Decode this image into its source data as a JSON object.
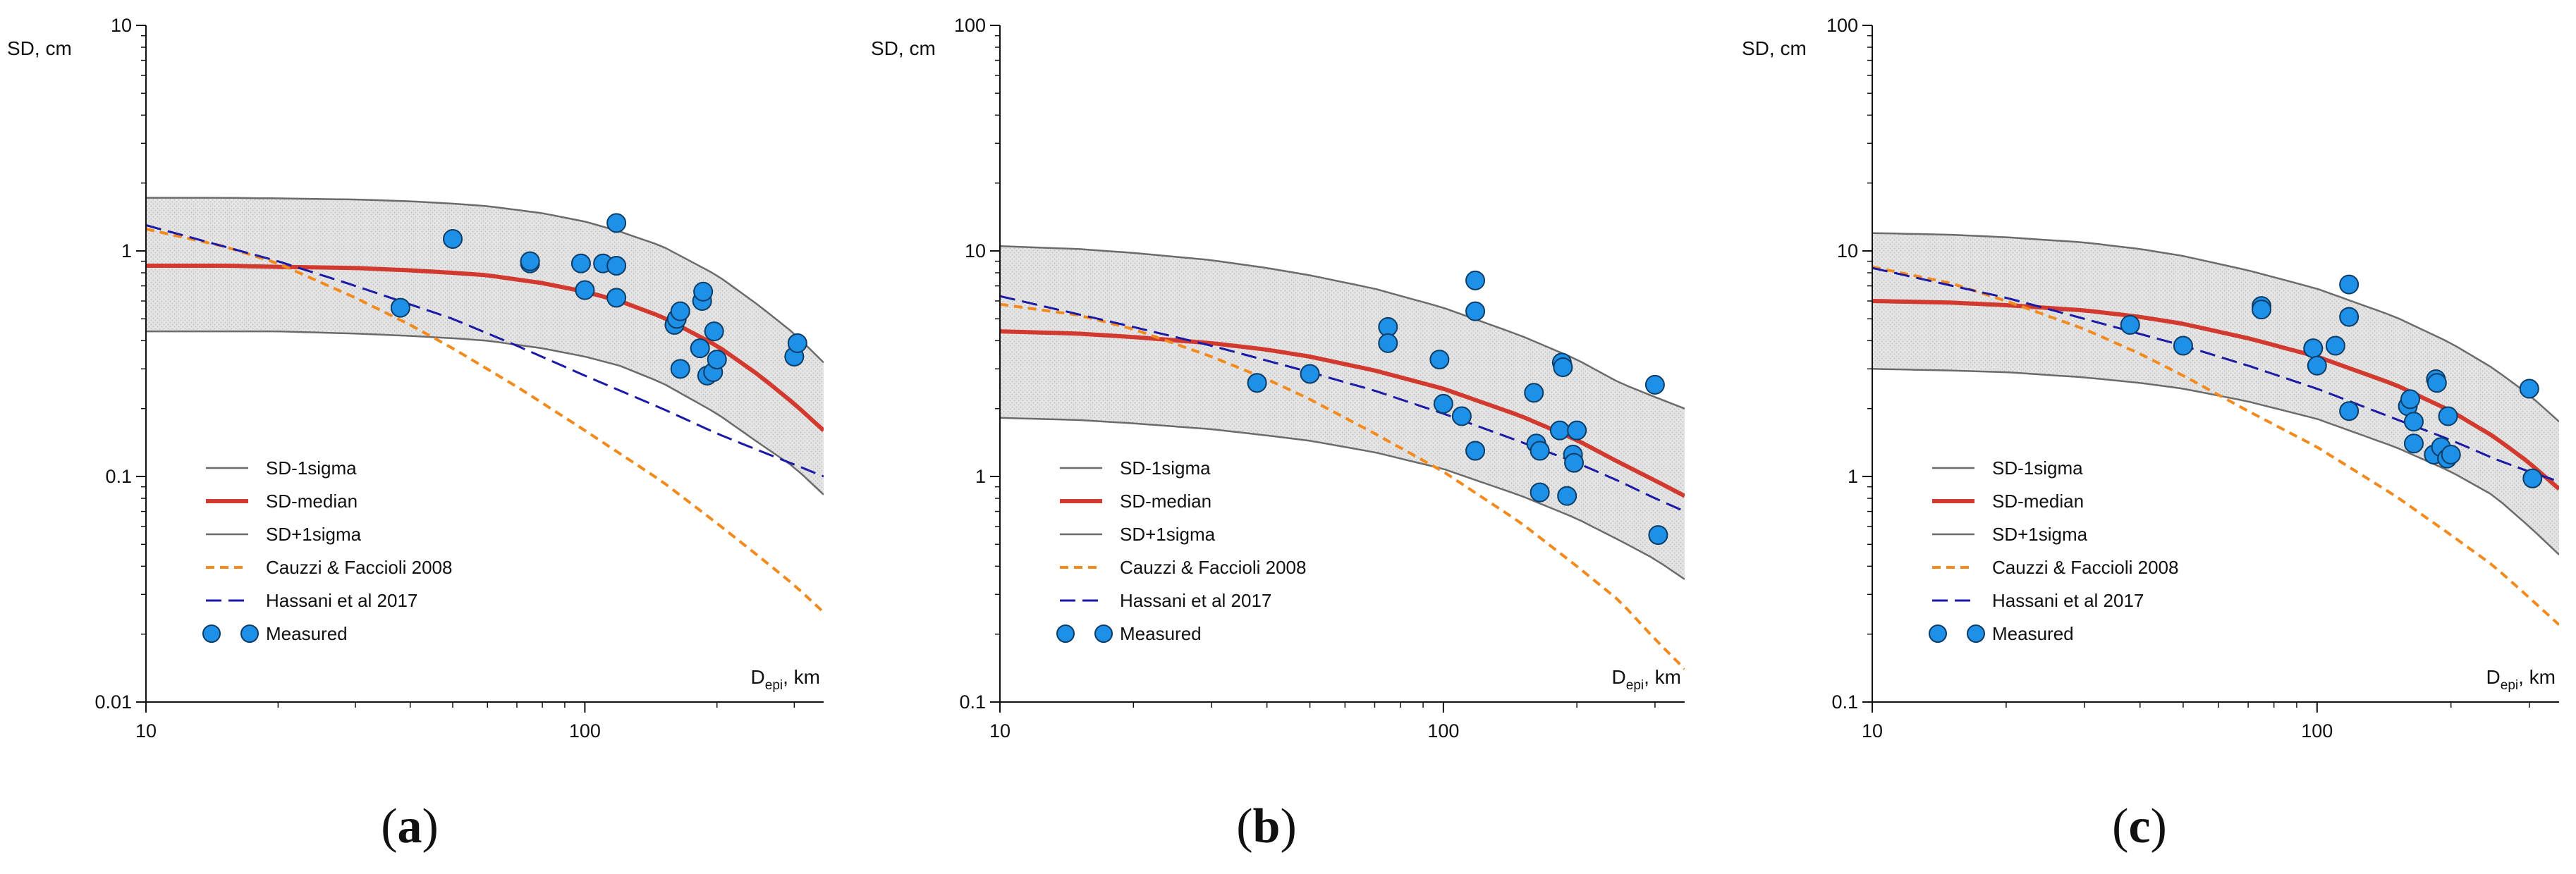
{
  "chart_data": [
    {
      "type": "line",
      "panel_label": {
        "open": "(",
        "letter": "a",
        "close": ")"
      },
      "ylabel": "SD, cm",
      "xlabel": {
        "main": "D",
        "sub": "epi",
        "unit": ", km"
      },
      "xscale": "log",
      "yscale": "log",
      "xlim": [
        10,
        350
      ],
      "ylim": [
        0.01,
        10
      ],
      "xticks": [
        10,
        100
      ],
      "xtick_labels": [
        "10",
        "100"
      ],
      "yticks": [
        0.01,
        0.1,
        1,
        10
      ],
      "ytick_labels": [
        "0.01",
        "0.1",
        "1",
        "10"
      ],
      "legend_position": "bottom-left",
      "legend": [
        "SD-1sigma",
        "SD-median",
        "SD+1sigma",
        "Cauzzi & Faccioli 2008",
        "Hassani et al 2017",
        "Measured"
      ],
      "series": [
        {
          "name": "SD-1sigma",
          "color": "#6b6b6b",
          "style": "solid",
          "x": [
            10,
            15,
            20,
            30,
            40,
            50,
            60,
            80,
            100,
            120,
            150,
            200,
            250,
            300,
            350
          ],
          "y": [
            0.44,
            0.44,
            0.44,
            0.43,
            0.42,
            0.41,
            0.4,
            0.37,
            0.34,
            0.31,
            0.26,
            0.19,
            0.14,
            0.11,
            0.083
          ]
        },
        {
          "name": "SD-median",
          "color": "#d23a2f",
          "style": "solid-thick",
          "x": [
            10,
            15,
            20,
            30,
            40,
            50,
            60,
            80,
            100,
            120,
            150,
            200,
            250,
            300,
            350
          ],
          "y": [
            0.86,
            0.86,
            0.85,
            0.84,
            0.82,
            0.8,
            0.78,
            0.72,
            0.66,
            0.6,
            0.51,
            0.38,
            0.28,
            0.21,
            0.16
          ]
        },
        {
          "name": "SD+1sigma",
          "color": "#6b6b6b",
          "style": "solid",
          "x": [
            10,
            15,
            20,
            30,
            40,
            50,
            60,
            80,
            100,
            120,
            150,
            200,
            250,
            300,
            350
          ],
          "y": [
            1.72,
            1.72,
            1.71,
            1.69,
            1.66,
            1.62,
            1.58,
            1.47,
            1.35,
            1.22,
            1.05,
            0.78,
            0.57,
            0.43,
            0.32
          ]
        },
        {
          "name": "Cauzzi & Faccioli 2008",
          "color": "#f28a1e",
          "style": "dashed",
          "x": [
            10,
            15,
            20,
            30,
            40,
            50,
            70,
            100,
            150,
            200,
            250,
            300,
            350
          ],
          "y": [
            1.25,
            1.05,
            0.88,
            0.62,
            0.47,
            0.37,
            0.25,
            0.16,
            0.095,
            0.062,
            0.044,
            0.033,
            0.025
          ]
        },
        {
          "name": "Hassani et al 2017",
          "color": "#1a1aa6",
          "style": "longdash",
          "x": [
            10,
            20,
            30,
            50,
            70,
            100,
            150,
            200,
            250,
            300,
            350
          ],
          "y": [
            1.3,
            0.9,
            0.7,
            0.5,
            0.38,
            0.28,
            0.2,
            0.155,
            0.13,
            0.113,
            0.1
          ]
        }
      ],
      "measured": {
        "name": "Measured",
        "color": "#1e90e8",
        "x": [
          38,
          50,
          75,
          75,
          98,
          100,
          110,
          118,
          118,
          118,
          160,
          162,
          165,
          165,
          183,
          185,
          186,
          190,
          196,
          197,
          200,
          300,
          305
        ],
        "y": [
          0.56,
          1.13,
          0.88,
          0.9,
          0.88,
          0.67,
          0.88,
          1.33,
          0.86,
          0.62,
          0.47,
          0.5,
          0.54,
          0.3,
          0.37,
          0.6,
          0.66,
          0.28,
          0.29,
          0.44,
          0.33,
          0.34,
          0.39
        ]
      }
    },
    {
      "type": "line",
      "panel_label": {
        "open": "(",
        "letter": "b",
        "close": ")"
      },
      "ylabel": "SD, cm",
      "xlabel": {
        "main": "D",
        "sub": "epi",
        "unit": ", km"
      },
      "xscale": "log",
      "yscale": "log",
      "xlim": [
        10,
        350
      ],
      "ylim": [
        0.1,
        100
      ],
      "xticks": [
        10,
        100
      ],
      "xtick_labels": [
        "10",
        "100"
      ],
      "yticks": [
        0.1,
        1,
        10,
        100
      ],
      "ytick_labels": [
        "0.1",
        "1",
        "10",
        "100"
      ],
      "legend_position": "bottom-left",
      "legend": [
        "SD-1sigma",
        "SD-median",
        "SD+1sigma",
        "Cauzzi & Faccioli 2008",
        "Hassani et al 2017",
        "Measured"
      ],
      "series": [
        {
          "name": "SD-1sigma",
          "color": "#6b6b6b",
          "style": "solid",
          "x": [
            10,
            15,
            20,
            30,
            40,
            50,
            70,
            100,
            150,
            200,
            250,
            300,
            350
          ],
          "y": [
            1.82,
            1.78,
            1.72,
            1.62,
            1.52,
            1.44,
            1.28,
            1.08,
            0.82,
            0.65,
            0.52,
            0.43,
            0.35
          ]
        },
        {
          "name": "SD-median",
          "color": "#d23a2f",
          "style": "solid-thick",
          "x": [
            10,
            15,
            20,
            30,
            40,
            50,
            70,
            100,
            150,
            200,
            250,
            300,
            350
          ],
          "y": [
            4.4,
            4.3,
            4.15,
            3.9,
            3.65,
            3.4,
            2.95,
            2.45,
            1.85,
            1.45,
            1.15,
            0.96,
            0.82
          ]
        },
        {
          "name": "SD+1sigma",
          "color": "#6b6b6b",
          "style": "solid",
          "x": [
            10,
            15,
            20,
            30,
            40,
            50,
            70,
            100,
            150,
            200,
            250,
            300,
            350
          ],
          "y": [
            10.5,
            10.2,
            9.8,
            9.1,
            8.4,
            7.8,
            6.8,
            5.6,
            4.2,
            3.3,
            2.6,
            2.25,
            2.0
          ]
        },
        {
          "name": "Cauzzi & Faccioli 2008",
          "color": "#f28a1e",
          "style": "dashed",
          "x": [
            10,
            15,
            20,
            30,
            40,
            50,
            70,
            100,
            150,
            200,
            250,
            300,
            350
          ],
          "y": [
            5.8,
            5.2,
            4.5,
            3.4,
            2.7,
            2.2,
            1.55,
            1.05,
            0.62,
            0.4,
            0.28,
            0.19,
            0.14
          ]
        },
        {
          "name": "Hassani et al 2017",
          "color": "#1a1aa6",
          "style": "longdash",
          "x": [
            10,
            20,
            30,
            50,
            70,
            100,
            150,
            200,
            250,
            300,
            350
          ],
          "y": [
            6.3,
            4.6,
            3.8,
            2.9,
            2.4,
            1.9,
            1.42,
            1.15,
            0.95,
            0.8,
            0.7
          ]
        }
      ],
      "measured": {
        "name": "Measured",
        "color": "#1e90e8",
        "x": [
          38,
          50,
          75,
          75,
          98,
          100,
          110,
          118,
          118,
          118,
          160,
          162,
          165,
          165,
          183,
          185,
          186,
          190,
          196,
          197,
          200,
          300,
          305
        ],
        "y": [
          2.6,
          2.85,
          4.6,
          3.9,
          3.3,
          2.1,
          1.85,
          7.4,
          5.4,
          1.3,
          2.35,
          1.4,
          1.3,
          0.85,
          1.6,
          3.2,
          3.05,
          0.82,
          1.25,
          1.15,
          1.6,
          2.55,
          0.55
        ]
      }
    },
    {
      "type": "line",
      "panel_label": {
        "open": "(",
        "letter": "c",
        "close": ")"
      },
      "ylabel": "SD, cm",
      "xlabel": {
        "main": "D",
        "sub": "epi",
        "unit": ", km"
      },
      "xscale": "log",
      "yscale": "log",
      "xlim": [
        10,
        350
      ],
      "ylim": [
        0.1,
        100
      ],
      "xticks": [
        10,
        100
      ],
      "xtick_labels": [
        "10",
        "100"
      ],
      "yticks": [
        0.1,
        1,
        10,
        100
      ],
      "ytick_labels": [
        "0.1",
        "1",
        "10",
        "100"
      ],
      "legend_position": "bottom-left",
      "legend": [
        "SD-1sigma",
        "SD-median",
        "SD+1sigma",
        "Cauzzi & Faccioli 2008",
        "Hassani et al 2017",
        "Measured"
      ],
      "series": [
        {
          "name": "SD-1sigma",
          "color": "#6b6b6b",
          "style": "solid",
          "x": [
            10,
            15,
            20,
            30,
            40,
            50,
            70,
            100,
            150,
            200,
            250,
            300,
            350
          ],
          "y": [
            3.0,
            2.95,
            2.9,
            2.75,
            2.6,
            2.45,
            2.15,
            1.8,
            1.35,
            1.05,
            0.82,
            0.6,
            0.45
          ]
        },
        {
          "name": "SD-median",
          "color": "#d23a2f",
          "style": "solid-thick",
          "x": [
            10,
            15,
            20,
            30,
            40,
            50,
            70,
            100,
            150,
            200,
            250,
            300,
            350
          ],
          "y": [
            6.0,
            5.9,
            5.75,
            5.45,
            5.1,
            4.75,
            4.1,
            3.4,
            2.55,
            1.95,
            1.5,
            1.15,
            0.88
          ]
        },
        {
          "name": "SD+1sigma",
          "color": "#6b6b6b",
          "style": "solid",
          "x": [
            10,
            15,
            20,
            30,
            40,
            50,
            70,
            100,
            150,
            200,
            250,
            300,
            350
          ],
          "y": [
            12.0,
            11.8,
            11.5,
            10.9,
            10.2,
            9.5,
            8.2,
            6.8,
            5.1,
            3.9,
            3.0,
            2.3,
            1.75
          ]
        },
        {
          "name": "Cauzzi & Faccioli 2008",
          "color": "#f28a1e",
          "style": "dashed",
          "x": [
            10,
            15,
            20,
            30,
            40,
            50,
            70,
            100,
            150,
            200,
            250,
            300,
            350
          ],
          "y": [
            8.5,
            7.2,
            6.0,
            4.5,
            3.5,
            2.8,
            1.95,
            1.35,
            0.82,
            0.55,
            0.4,
            0.29,
            0.22
          ]
        },
        {
          "name": "Hassani et al 2017",
          "color": "#1a1aa6",
          "style": "longdash",
          "x": [
            10,
            20,
            30,
            50,
            70,
            100,
            150,
            200,
            250,
            300,
            350
          ],
          "y": [
            8.4,
            6.2,
            5.0,
            3.8,
            3.1,
            2.45,
            1.8,
            1.45,
            1.2,
            1.05,
            0.95
          ]
        }
      ],
      "measured": {
        "name": "Measured",
        "color": "#1e90e8",
        "x": [
          38,
          50,
          75,
          75,
          98,
          100,
          110,
          118,
          118,
          118,
          160,
          162,
          165,
          165,
          183,
          185,
          186,
          190,
          196,
          197,
          200,
          300,
          305
        ],
        "y": [
          4.7,
          3.8,
          5.7,
          5.5,
          3.7,
          3.1,
          3.8,
          7.1,
          5.1,
          1.95,
          2.05,
          2.2,
          1.75,
          1.4,
          1.25,
          2.7,
          2.6,
          1.35,
          1.2,
          1.85,
          1.25,
          2.45,
          0.98
        ]
      }
    }
  ]
}
